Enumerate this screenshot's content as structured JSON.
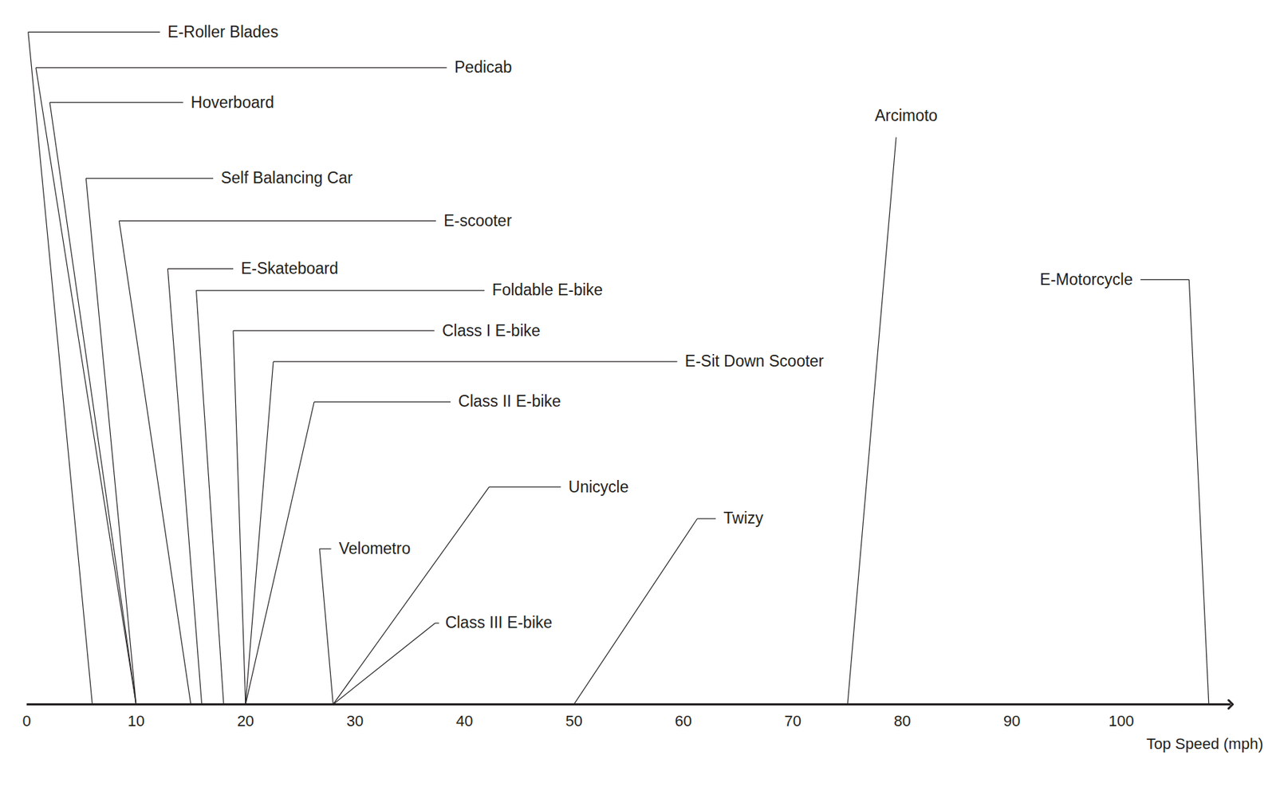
{
  "chart_data": {
    "type": "strip",
    "categories": [
      "E-Roller Blades",
      "Pedicab",
      "Hoverboard",
      "Self Balancing Car",
      "E-scooter",
      "E-Skateboard",
      "Foldable E-bike",
      "Class I E-bike",
      "E-Sit Down Scooter",
      "Class II E-bike",
      "Velometro",
      "Unicycle",
      "Class III E-bike",
      "Twizy",
      "Arcimoto",
      "E-Motorcycle"
    ],
    "values": [
      6,
      10,
      10,
      10,
      15,
      16,
      18,
      20,
      20,
      20,
      28,
      28,
      28,
      50,
      75,
      108
    ],
    "xlabel": "Top Speed (mph)",
    "xlim": [
      0,
      110
    ],
    "xticks": [
      0,
      10,
      20,
      30,
      40,
      50,
      60,
      70,
      80,
      90,
      100
    ],
    "color": "#231f20"
  }
}
